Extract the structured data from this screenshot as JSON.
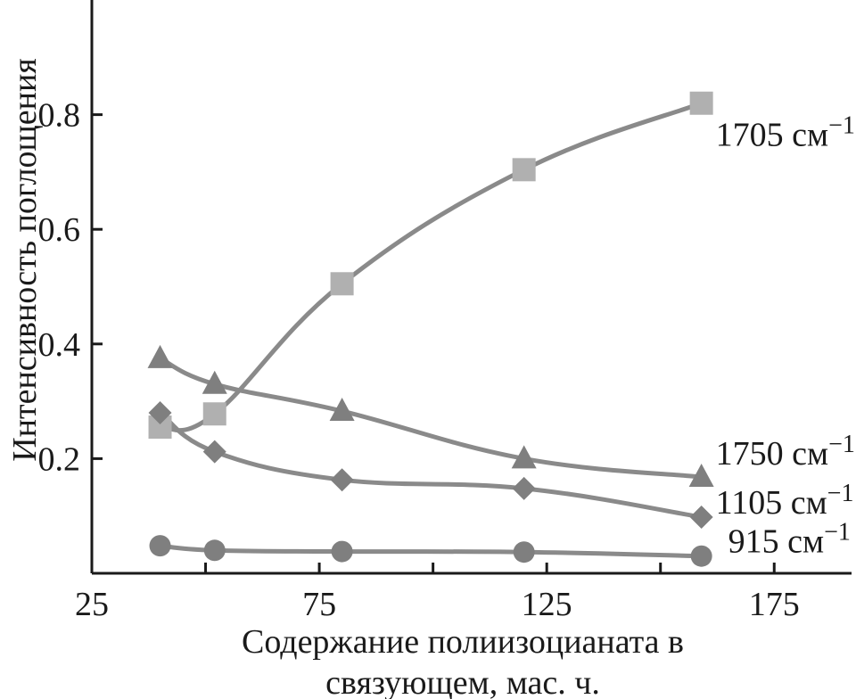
{
  "chart_data": {
    "type": "line",
    "title": "",
    "xlabel_lines": [
      "Содержание полиизоцианата в",
      "связующем, мас. ч."
    ],
    "ylabel": "Интенсивность поглощения",
    "xlim": [
      25,
      192
    ],
    "ylim": [
      0,
      1.0
    ],
    "xticks": [
      25,
      75,
      125,
      175
    ],
    "xtick_labels": [
      "25",
      "75",
      "125",
      "175"
    ],
    "xminor": [
      50,
      100,
      150
    ],
    "yticks": [
      0.2,
      0.4,
      0.6,
      0.8
    ],
    "ytick_labels": [
      "0.2",
      "0.4",
      "0.6",
      "0.8"
    ],
    "grid": false,
    "legend": "none",
    "line_color": "#8a8a8a",
    "series": [
      {
        "name": "1705 см",
        "superscript": "−1",
        "marker": "square",
        "color": "#b0b0b0",
        "x": [
          40,
          52,
          80,
          120,
          159
        ],
        "values": [
          0.255,
          0.278,
          0.505,
          0.704,
          0.82
        ]
      },
      {
        "name": "1750 см",
        "superscript": "−1",
        "marker": "triangle",
        "color": "#7f7f7f",
        "x": [
          40,
          52,
          80,
          120,
          159
        ],
        "values": [
          0.375,
          0.33,
          0.283,
          0.2,
          0.168
        ]
      },
      {
        "name": "1105 см",
        "superscript": "−1",
        "marker": "diamond",
        "color": "#7f7f7f",
        "x": [
          40,
          52,
          80,
          120,
          159
        ],
        "values": [
          0.28,
          0.212,
          0.163,
          0.148,
          0.098
        ]
      },
      {
        "name": "915 см",
        "superscript": "−1",
        "marker": "circle",
        "color": "#7f7f7f",
        "x": [
          40,
          52,
          80,
          120,
          159
        ],
        "values": [
          0.048,
          0.04,
          0.038,
          0.037,
          0.03
        ]
      }
    ]
  }
}
